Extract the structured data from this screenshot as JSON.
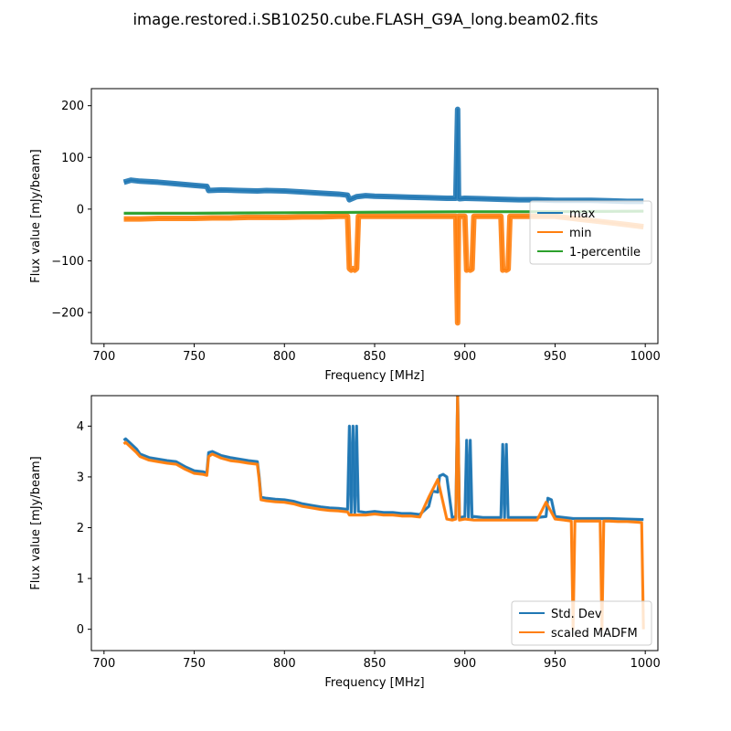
{
  "figure": {
    "suptitle": "image.restored.i.SB10250.cube.FLASH_G9A_long.beam02.fits"
  },
  "chart_data": [
    {
      "type": "line",
      "xlabel": "Frequency [MHz]",
      "ylabel": "Flux value [mJy/beam]",
      "xlim": [
        693,
        1007
      ],
      "ylim": [
        -260,
        233
      ],
      "xticks": [
        700,
        750,
        800,
        850,
        900,
        950,
        1000
      ],
      "yticks": [
        -200,
        -100,
        0,
        100,
        200
      ],
      "ytick_labels": [
        "−200",
        "−100",
        "0",
        "100",
        "200"
      ],
      "legend_position": "center-right",
      "series": [
        {
          "name": "max",
          "color": "#1f77b4",
          "x": [
            711,
            715,
            720,
            730,
            740,
            750,
            757,
            758,
            765,
            775,
            785,
            790,
            800,
            810,
            820,
            830,
            835,
            836,
            840,
            845,
            850,
            860,
            870,
            880,
            890,
            895,
            896,
            896.5,
            897,
            900,
            910,
            920,
            930,
            940,
            950,
            960,
            970,
            980,
            990,
            999
          ],
          "y": [
            52,
            56,
            54,
            52,
            49,
            46,
            44,
            36,
            37,
            36,
            35,
            36,
            35,
            33,
            31,
            29,
            27,
            18,
            24,
            26,
            25,
            24,
            23,
            22,
            21,
            21,
            193,
            21,
            20,
            21,
            20,
            19,
            18,
            18,
            17,
            17,
            17,
            16,
            15,
            15
          ]
        },
        {
          "name": "min",
          "color": "#ff7f0e",
          "x": [
            711,
            720,
            730,
            740,
            750,
            760,
            770,
            780,
            790,
            800,
            810,
            820,
            830,
            835,
            836,
            837,
            838,
            839,
            840,
            841,
            850,
            860,
            870,
            880,
            890,
            895,
            896,
            896.5,
            897,
            900,
            901,
            902,
            903,
            904,
            905,
            910,
            915,
            920,
            921,
            922,
            923,
            924,
            925,
            930,
            940,
            950,
            960,
            970,
            980,
            990,
            999
          ],
          "y": [
            -19,
            -19,
            -18,
            -18,
            -18,
            -17,
            -17,
            -16,
            -16,
            -16,
            -15,
            -15,
            -14,
            -14,
            -115,
            -118,
            -115,
            -118,
            -115,
            -14,
            -14,
            -14,
            -14,
            -14,
            -14,
            -14,
            -220,
            -14,
            -14,
            -14,
            -118,
            -116,
            -118,
            -116,
            -14,
            -14,
            -14,
            -14,
            -118,
            -116,
            -118,
            -116,
            -14,
            -14,
            -14,
            -14,
            -18,
            -22,
            -26,
            -30,
            -34
          ]
        },
        {
          "name": "1-percentile",
          "color": "#2ca02c",
          "x": [
            711,
            750,
            800,
            850,
            900,
            950,
            999
          ],
          "y": [
            -8,
            -8,
            -7,
            -6,
            -5,
            -5,
            -4
          ]
        }
      ]
    },
    {
      "type": "line",
      "xlabel": "Frequency [MHz]",
      "ylabel": "Flux value [mJy/beam]",
      "xlim": [
        693,
        1007
      ],
      "ylim": [
        -0.42,
        4.6
      ],
      "xticks": [
        700,
        750,
        800,
        850,
        900,
        950,
        1000
      ],
      "yticks": [
        0,
        1,
        2,
        3,
        4
      ],
      "legend_position": "lower-right",
      "series": [
        {
          "name": "Std. Dev",
          "color": "#1f77b4",
          "x": [
            711,
            712,
            715,
            718,
            720,
            725,
            730,
            735,
            740,
            745,
            750,
            755,
            757,
            758,
            760,
            765,
            770,
            775,
            780,
            785,
            786,
            787,
            790,
            795,
            800,
            805,
            810,
            815,
            820,
            825,
            830,
            835,
            836,
            837,
            838,
            839,
            840,
            841,
            845,
            850,
            855,
            860,
            865,
            870,
            875,
            880,
            882,
            885,
            886,
            888,
            890,
            893,
            895,
            896,
            897,
            900,
            901,
            902,
            903,
            904,
            905,
            910,
            915,
            920,
            921,
            922,
            923,
            924,
            925,
            930,
            935,
            940,
            945,
            946,
            948,
            950,
            955,
            960,
            965,
            970,
            980,
            990,
            999
          ],
          "y": [
            3.72,
            3.75,
            3.65,
            3.55,
            3.45,
            3.38,
            3.35,
            3.32,
            3.3,
            3.2,
            3.12,
            3.1,
            3.08,
            3.48,
            3.5,
            3.42,
            3.38,
            3.35,
            3.32,
            3.3,
            3.0,
            2.6,
            2.58,
            2.56,
            2.55,
            2.52,
            2.47,
            2.44,
            2.41,
            2.39,
            2.38,
            2.36,
            4.0,
            2.3,
            4.0,
            2.3,
            4.0,
            2.32,
            2.3,
            2.32,
            2.3,
            2.3,
            2.28,
            2.28,
            2.26,
            2.42,
            2.72,
            2.7,
            3.02,
            3.05,
            3.0,
            2.2,
            2.22,
            4.6,
            2.2,
            2.22,
            3.72,
            2.2,
            3.72,
            2.2,
            2.22,
            2.2,
            2.2,
            2.2,
            3.64,
            2.2,
            3.64,
            2.2,
            2.2,
            2.2,
            2.2,
            2.2,
            2.22,
            2.58,
            2.55,
            2.22,
            2.2,
            2.18,
            2.18,
            2.18,
            2.18,
            2.17,
            2.16
          ]
        },
        {
          "name": "scaled MADFM",
          "color": "#ff7f0e",
          "x": [
            711,
            712,
            715,
            718,
            720,
            725,
            730,
            735,
            740,
            745,
            750,
            755,
            757,
            758,
            760,
            765,
            770,
            775,
            780,
            785,
            786,
            787,
            790,
            795,
            800,
            805,
            810,
            815,
            820,
            825,
            830,
            835,
            836,
            840,
            845,
            850,
            855,
            860,
            865,
            870,
            875,
            880,
            885,
            890,
            893,
            895,
            896,
            897,
            900,
            905,
            910,
            915,
            920,
            925,
            930,
            935,
            940,
            945,
            950,
            955,
            959,
            960,
            961,
            965,
            970,
            975,
            976,
            977,
            980,
            985,
            990,
            995,
            998,
            999
          ],
          "y": [
            3.65,
            3.68,
            3.58,
            3.48,
            3.4,
            3.33,
            3.3,
            3.27,
            3.25,
            3.15,
            3.07,
            3.05,
            3.03,
            3.4,
            3.45,
            3.37,
            3.32,
            3.3,
            3.27,
            3.25,
            2.95,
            2.55,
            2.53,
            2.51,
            2.5,
            2.47,
            2.42,
            2.39,
            2.36,
            2.34,
            2.33,
            2.31,
            2.25,
            2.25,
            2.25,
            2.27,
            2.25,
            2.25,
            2.23,
            2.23,
            2.21,
            2.6,
            2.95,
            2.17,
            2.15,
            2.17,
            4.6,
            2.15,
            2.17,
            2.15,
            2.15,
            2.15,
            2.15,
            2.15,
            2.15,
            2.15,
            2.15,
            2.5,
            2.17,
            2.15,
            2.13,
            0.0,
            2.13,
            2.13,
            2.13,
            2.13,
            0.0,
            2.13,
            2.13,
            2.12,
            2.12,
            2.11,
            2.1,
            0.0
          ]
        }
      ]
    }
  ]
}
